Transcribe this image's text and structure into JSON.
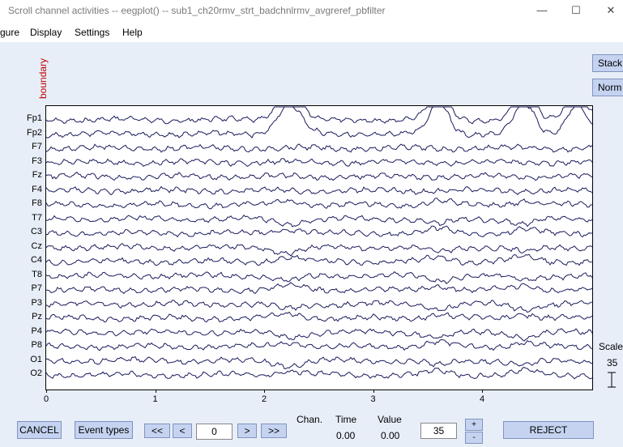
{
  "window": {
    "title": "Scroll channel activities -- eegplot() -- sub1_ch20rmv_strt_badchnlrmv_avgreref_pbfilter",
    "min_glyph": "—",
    "max_glyph": "☐",
    "close_glyph": "✕"
  },
  "menu": [
    "gure",
    "Display",
    "Settings",
    "Help"
  ],
  "boundary_label": "boundary",
  "right_buttons": {
    "stack": "Stack",
    "norm": "Norm"
  },
  "channels": [
    "Fp1",
    "Fp2",
    "F7",
    "F3",
    "Fz",
    "F4",
    "F8",
    "T7",
    "C3",
    "Cz",
    "C4",
    "T8",
    "P7",
    "P3",
    "Pz",
    "P4",
    "P8",
    "O1",
    "O2"
  ],
  "x_ticks": [
    "0",
    "1",
    "2",
    "3",
    "4"
  ],
  "scale": {
    "label": "Scale",
    "value": "35"
  },
  "controls": {
    "cancel": "CANCEL",
    "event_types": "Event types",
    "prev_page": "<<",
    "prev": "<",
    "time_value": "0",
    "next": ">",
    "next_page": ">>",
    "chan_label": "Chan.",
    "time_label": "Time",
    "value_label": "Value",
    "time_readout": "0.00",
    "value_readout": "0.00",
    "scale_value": "35",
    "plus": "+",
    "minus": "-",
    "reject": "REJECT"
  },
  "colors": {
    "trace": "#1a1a5e",
    "boundary": "#c00000",
    "button": "#c5d3f0",
    "panel": "#e8eef8"
  }
}
